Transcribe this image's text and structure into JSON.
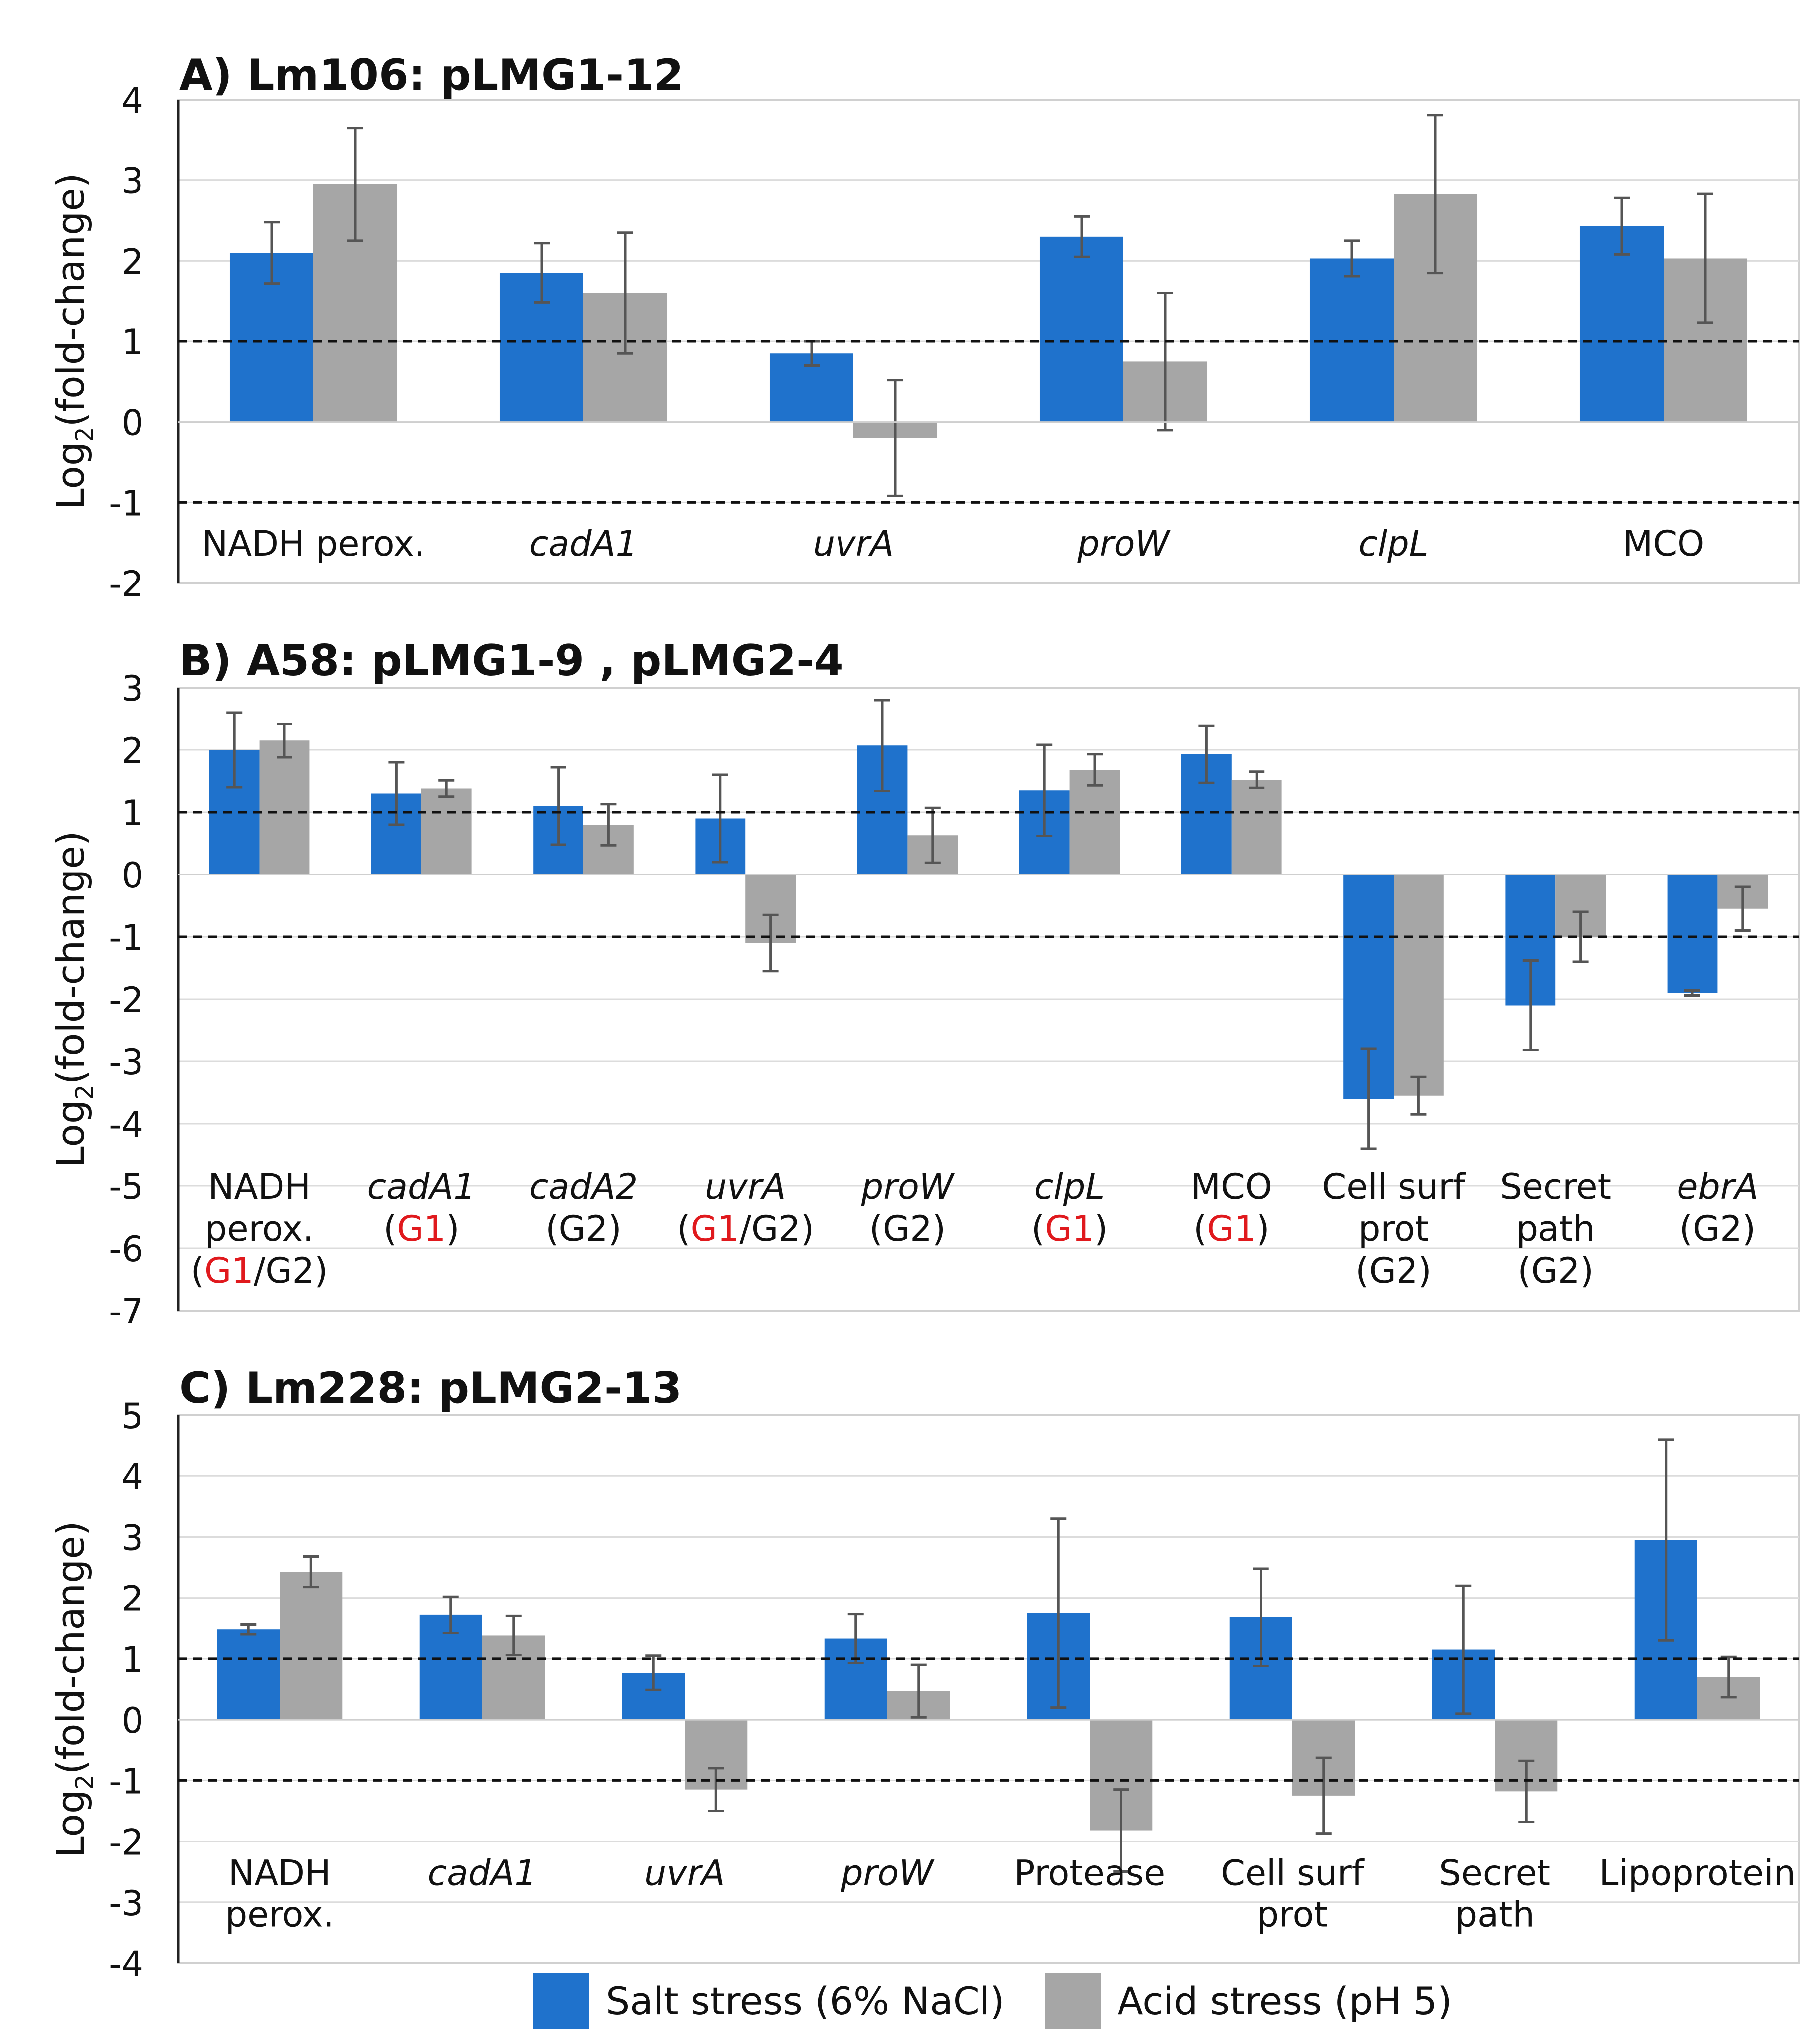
{
  "colors": {
    "salt": "#1f72cc",
    "acid": "#a6a6a6",
    "error": "#555555",
    "highlight": "#e0191d"
  },
  "legend": {
    "salt_label": "Salt stress (6% NaCl)",
    "acid_label": "Acid stress (pH 5)"
  },
  "chart_data": [
    {
      "type": "bar",
      "title": "A) Lm106: pLMG1-12",
      "ylabel": "Log2(fold-change)",
      "ylim": [
        -2,
        4
      ],
      "yticks": [
        4,
        3,
        2,
        1,
        0,
        -1,
        -2
      ],
      "thresholds": [
        1,
        -1
      ],
      "categories": [
        [
          {
            "t": "NADH perox.",
            "i": false
          }
        ],
        [
          {
            "t": "cadA1",
            "i": true
          }
        ],
        [
          {
            "t": "uvrA",
            "i": true
          }
        ],
        [
          {
            "t": "proW",
            "i": true
          }
        ],
        [
          {
            "t": "clpL",
            "i": true
          }
        ],
        [
          {
            "t": "MCO",
            "i": false
          }
        ]
      ],
      "series": [
        {
          "name": "Salt stress (6% NaCl)",
          "values": [
            2.1,
            1.85,
            0.85,
            2.3,
            2.03,
            2.43
          ],
          "errors": [
            0.38,
            0.37,
            0.15,
            0.25,
            0.22,
            0.35
          ]
        },
        {
          "name": "Acid stress (pH 5)",
          "values": [
            2.95,
            1.6,
            -0.2,
            0.75,
            2.83,
            2.03
          ],
          "errors": [
            0.7,
            0.75,
            0.72,
            0.85,
            0.98,
            0.8
          ]
        }
      ]
    },
    {
      "type": "bar",
      "title": "B) A58: pLMG1-9 , pLMG2-4",
      "ylabel": "Log2(fold-change)",
      "ylim": [
        -7,
        3
      ],
      "yticks": [
        3,
        2,
        1,
        0,
        -1,
        -2,
        -3,
        -4,
        -5,
        -6,
        -7
      ],
      "thresholds": [
        1,
        -1
      ],
      "categories": [
        [
          {
            "t": "NADH",
            "i": false
          },
          {
            "t": "perox.",
            "i": false
          },
          {
            "t": "(",
            "i": false
          },
          {
            "t": "G1",
            "i": false,
            "red": true
          },
          {
            "t": "/G2)",
            "i": false
          }
        ],
        [
          {
            "t": "cadA1",
            "i": true
          },
          {
            "t": "(",
            "i": false
          },
          {
            "t": "G1",
            "i": false,
            "red": true
          },
          {
            "t": ")",
            "i": false
          }
        ],
        [
          {
            "t": "cadA2",
            "i": true
          },
          {
            "t": "(G2)",
            "i": false
          }
        ],
        [
          {
            "t": "uvrA",
            "i": true
          },
          {
            "t": "(",
            "i": false
          },
          {
            "t": "G1",
            "i": false,
            "red": true
          },
          {
            "t": "/G2)",
            "i": false
          }
        ],
        [
          {
            "t": "proW",
            "i": true
          },
          {
            "t": "(G2)",
            "i": false
          }
        ],
        [
          {
            "t": "clpL",
            "i": true
          },
          {
            "t": "(",
            "i": false
          },
          {
            "t": "G1",
            "i": false,
            "red": true
          },
          {
            "t": ")",
            "i": false
          }
        ],
        [
          {
            "t": "MCO",
            "i": false
          },
          {
            "t": "(",
            "i": false
          },
          {
            "t": "G1",
            "i": false,
            "red": true
          },
          {
            "t": ")",
            "i": false
          }
        ],
        [
          {
            "t": "Cell surf",
            "i": false
          },
          {
            "t": "prot",
            "i": false
          },
          {
            "t": "(G2)",
            "i": false
          }
        ],
        [
          {
            "t": "Secret",
            "i": false
          },
          {
            "t": "path",
            "i": false
          },
          {
            "t": "(G2)",
            "i": false
          }
        ],
        [
          {
            "t": "ebrA",
            "i": true
          },
          {
            "t": "(G2)",
            "i": false
          }
        ]
      ],
      "label_lines": [
        [
          0,
          1,
          2
        ],
        [
          0,
          1
        ],
        [
          0,
          1
        ],
        [
          0,
          1
        ],
        [
          0,
          1
        ],
        [
          0,
          1
        ],
        [
          0,
          1
        ],
        [
          0,
          1,
          2
        ],
        [
          0,
          1,
          2
        ],
        [
          0,
          1
        ]
      ],
      "series": [
        {
          "name": "Salt stress (6% NaCl)",
          "values": [
            2.0,
            1.3,
            1.1,
            0.9,
            2.07,
            1.35,
            1.93,
            -3.6,
            -2.1,
            -1.9
          ],
          "errors": [
            0.6,
            0.5,
            0.62,
            0.7,
            0.73,
            0.73,
            0.46,
            0.8,
            0.72,
            0.04
          ]
        },
        {
          "name": "Acid stress (pH 5)",
          "values": [
            2.15,
            1.38,
            0.8,
            -1.1,
            0.63,
            1.68,
            1.52,
            -3.55,
            -1.0,
            -0.55
          ],
          "errors": [
            0.27,
            0.13,
            0.33,
            0.45,
            0.44,
            0.25,
            0.13,
            0.3,
            0.4,
            0.35
          ]
        }
      ]
    },
    {
      "type": "bar",
      "title": "C) Lm228: pLMG2-13",
      "ylabel": "Log2(fold-change)",
      "ylim": [
        -4,
        5
      ],
      "yticks": [
        5,
        4,
        3,
        2,
        1,
        0,
        -1,
        -2,
        -3,
        -4
      ],
      "thresholds": [
        1,
        -1
      ],
      "categories": [
        [
          {
            "t": "NADH",
            "i": false
          },
          {
            "t": "perox.",
            "i": false
          }
        ],
        [
          {
            "t": "cadA1",
            "i": true
          }
        ],
        [
          {
            "t": "uvrA",
            "i": true
          }
        ],
        [
          {
            "t": "proW",
            "i": true
          }
        ],
        [
          {
            "t": "Protease",
            "i": false
          }
        ],
        [
          {
            "t": "Cell surf",
            "i": false
          },
          {
            "t": "prot",
            "i": false
          }
        ],
        [
          {
            "t": "Secret",
            "i": false
          },
          {
            "t": "path",
            "i": false
          }
        ],
        [
          {
            "t": "Lipoprotein",
            "i": false
          }
        ]
      ],
      "series": [
        {
          "name": "Salt stress (6% NaCl)",
          "values": [
            1.48,
            1.72,
            0.77,
            1.33,
            1.75,
            1.68,
            1.15,
            2.95
          ],
          "errors": [
            0.08,
            0.3,
            0.28,
            0.4,
            1.55,
            0.8,
            1.05,
            1.65
          ]
        },
        {
          "name": "Acid stress (pH 5)",
          "values": [
            2.43,
            1.38,
            -1.15,
            0.47,
            -1.82,
            -1.25,
            -1.18,
            0.7
          ],
          "errors": [
            0.25,
            0.32,
            0.35,
            0.43,
            0.67,
            0.62,
            0.5,
            0.33
          ]
        }
      ]
    }
  ]
}
